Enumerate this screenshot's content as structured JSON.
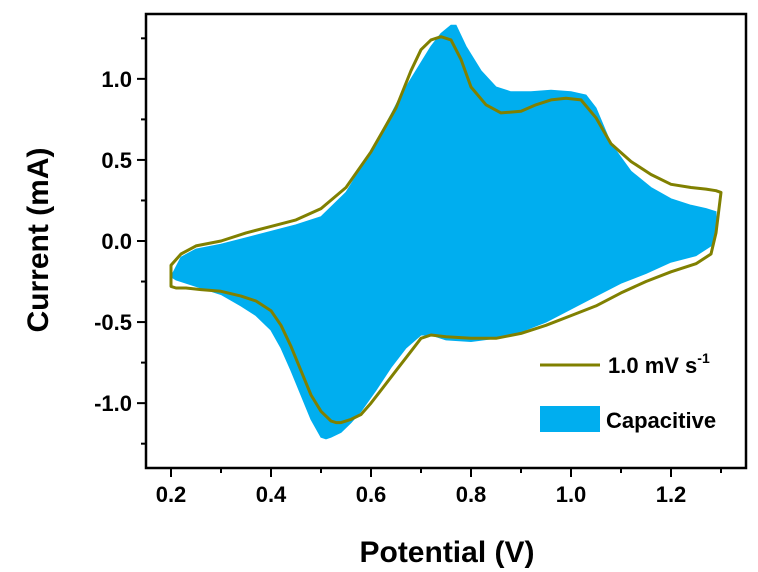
{
  "chart_data": {
    "type": "line",
    "title": "",
    "xlabel": "Potential (V)",
    "ylabel": "Current (mA)",
    "xlim": [
      0.15,
      1.35
    ],
    "ylim": [
      -1.4,
      1.4
    ],
    "x_ticks": [
      0.2,
      0.4,
      0.6,
      0.8,
      1.0,
      1.2
    ],
    "x_tick_labels": [
      "0.2",
      "0.4",
      "0.6",
      "0.8",
      "1.0",
      "1.2"
    ],
    "y_ticks": [
      -1.0,
      -0.5,
      0.0,
      0.5,
      1.0
    ],
    "y_tick_labels": [
      "-1.0",
      "-0.5",
      "0.0",
      "0.5",
      "1.0"
    ],
    "grid": false,
    "legend_position": "bottom-right",
    "legend": {
      "line_label_main": "1.0 mV s",
      "line_label_sup": "-1",
      "area_label": "Capacitive"
    },
    "colors": {
      "line": "#808000",
      "area": "#00AEEF"
    },
    "series": [
      {
        "name": "1.0 mV s-1",
        "kind": "line",
        "x": [
          0.2,
          0.22,
          0.25,
          0.3,
          0.35,
          0.4,
          0.45,
          0.5,
          0.55,
          0.6,
          0.65,
          0.68,
          0.7,
          0.72,
          0.74,
          0.76,
          0.78,
          0.8,
          0.83,
          0.86,
          0.9,
          0.93,
          0.96,
          0.99,
          1.02,
          1.05,
          1.08,
          1.12,
          1.16,
          1.2,
          1.24,
          1.27,
          1.29,
          1.3,
          1.29,
          1.28,
          1.25,
          1.2,
          1.15,
          1.1,
          1.05,
          1.0,
          0.95,
          0.9,
          0.85,
          0.8,
          0.75,
          0.72,
          0.7,
          0.68,
          0.65,
          0.62,
          0.6,
          0.58,
          0.56,
          0.54,
          0.53,
          0.52,
          0.5,
          0.48,
          0.46,
          0.44,
          0.42,
          0.4,
          0.37,
          0.34,
          0.3,
          0.26,
          0.23,
          0.21,
          0.2
        ],
        "y": [
          -0.15,
          -0.08,
          -0.03,
          0.0,
          0.05,
          0.09,
          0.13,
          0.2,
          0.33,
          0.55,
          0.82,
          1.05,
          1.18,
          1.24,
          1.26,
          1.24,
          1.12,
          0.95,
          0.84,
          0.79,
          0.8,
          0.84,
          0.87,
          0.88,
          0.87,
          0.76,
          0.6,
          0.49,
          0.41,
          0.35,
          0.33,
          0.32,
          0.31,
          0.3,
          0.05,
          -0.08,
          -0.14,
          -0.19,
          -0.25,
          -0.32,
          -0.4,
          -0.46,
          -0.52,
          -0.57,
          -0.6,
          -0.6,
          -0.59,
          -0.58,
          -0.6,
          -0.68,
          -0.8,
          -0.92,
          -1.0,
          -1.07,
          -1.1,
          -1.12,
          -1.12,
          -1.11,
          -1.05,
          -0.95,
          -0.8,
          -0.65,
          -0.52,
          -0.43,
          -0.37,
          -0.34,
          -0.31,
          -0.3,
          -0.29,
          -0.29,
          -0.28
        ]
      },
      {
        "name": "Capacitive",
        "kind": "area",
        "x": [
          0.2,
          0.22,
          0.25,
          0.3,
          0.35,
          0.4,
          0.45,
          0.5,
          0.55,
          0.6,
          0.64,
          0.66,
          0.68,
          0.7,
          0.72,
          0.74,
          0.76,
          0.77,
          0.79,
          0.82,
          0.85,
          0.88,
          0.92,
          0.96,
          1.0,
          1.03,
          1.05,
          1.08,
          1.12,
          1.16,
          1.2,
          1.24,
          1.27,
          1.29,
          1.29,
          1.28,
          1.25,
          1.2,
          1.15,
          1.1,
          1.05,
          1.0,
          0.95,
          0.9,
          0.85,
          0.8,
          0.75,
          0.72,
          0.7,
          0.67,
          0.64,
          0.61,
          0.58,
          0.56,
          0.54,
          0.52,
          0.51,
          0.5,
          0.48,
          0.46,
          0.44,
          0.42,
          0.4,
          0.37,
          0.34,
          0.3,
          0.26,
          0.23,
          0.21,
          0.2
        ],
        "y": [
          -0.22,
          -0.1,
          -0.05,
          -0.02,
          0.02,
          0.06,
          0.1,
          0.15,
          0.3,
          0.55,
          0.78,
          0.9,
          1.0,
          1.1,
          1.2,
          1.28,
          1.33,
          1.33,
          1.2,
          1.05,
          0.95,
          0.92,
          0.92,
          0.93,
          0.92,
          0.9,
          0.82,
          0.6,
          0.43,
          0.33,
          0.26,
          0.22,
          0.2,
          0.18,
          0.05,
          -0.03,
          -0.09,
          -0.13,
          -0.2,
          -0.26,
          -0.34,
          -0.42,
          -0.5,
          -0.56,
          -0.6,
          -0.62,
          -0.61,
          -0.58,
          -0.58,
          -0.66,
          -0.78,
          -0.92,
          -1.05,
          -1.12,
          -1.18,
          -1.21,
          -1.22,
          -1.21,
          -1.1,
          -0.95,
          -0.8,
          -0.66,
          -0.55,
          -0.46,
          -0.4,
          -0.33,
          -0.29,
          -0.26,
          -0.24,
          -0.22
        ]
      }
    ]
  }
}
